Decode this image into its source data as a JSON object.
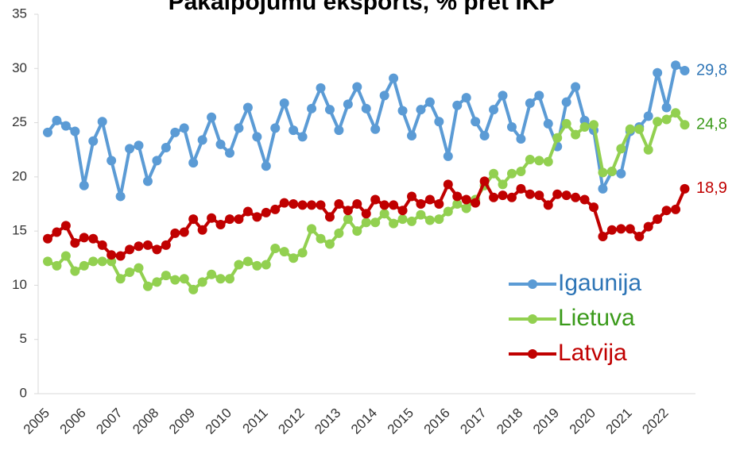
{
  "chart_data": {
    "type": "line",
    "title": "Pakalpojumu eksports, % pret IKP",
    "categories": [
      "2005",
      null,
      null,
      null,
      "2006",
      null,
      null,
      null,
      "2007",
      null,
      null,
      null,
      "2008",
      null,
      null,
      null,
      "2009",
      null,
      null,
      null,
      "2010",
      null,
      null,
      null,
      "2011",
      null,
      null,
      null,
      "2012",
      null,
      null,
      null,
      "2013",
      null,
      null,
      null,
      "2014",
      null,
      null,
      null,
      "2015",
      null,
      null,
      null,
      "2016",
      null,
      null,
      null,
      "2017",
      null,
      null,
      null,
      "2018",
      null,
      null,
      null,
      "2019",
      null,
      null,
      null,
      "2020",
      null,
      null,
      null,
      "2021",
      null,
      null,
      null,
      "2022",
      null,
      null
    ],
    "series": [
      {
        "name": "Igaunija",
        "color": "#5b9bd5",
        "label_color": "#2e75b6",
        "end_label": "29,8",
        "values": [
          24.1,
          25.2,
          24.7,
          24.2,
          19.2,
          23.3,
          25.1,
          21.5,
          18.2,
          22.6,
          22.9,
          19.6,
          21.5,
          22.7,
          24.1,
          24.5,
          21.3,
          23.4,
          25.5,
          23.0,
          22.2,
          24.5,
          26.4,
          23.7,
          21.0,
          24.5,
          26.8,
          24.3,
          23.7,
          26.3,
          28.2,
          26.2,
          24.3,
          26.7,
          28.3,
          26.3,
          24.4,
          27.5,
          29.1,
          26.1,
          23.8,
          26.2,
          26.9,
          25.1,
          21.9,
          26.6,
          27.3,
          25.1,
          23.8,
          26.2,
          27.5,
          24.6,
          23.5,
          26.8,
          27.5,
          24.9,
          22.8,
          26.9,
          28.3,
          25.2,
          24.3,
          18.9,
          20.5,
          20.3,
          24.2,
          24.6,
          25.6,
          29.6,
          26.4,
          30.3,
          29.8
        ]
      },
      {
        "name": "Lietuva",
        "color": "#92d050",
        "label_color": "#3a9a1a",
        "end_label": "24,8",
        "values": [
          12.2,
          11.8,
          12.7,
          11.3,
          11.8,
          12.2,
          12.2,
          12.2,
          10.6,
          11.2,
          11.6,
          9.9,
          10.3,
          10.9,
          10.5,
          10.6,
          9.6,
          10.3,
          11.0,
          10.6,
          10.6,
          11.9,
          12.2,
          11.8,
          11.9,
          13.4,
          13.1,
          12.5,
          13.0,
          15.2,
          14.3,
          13.8,
          14.8,
          16.1,
          15.0,
          15.8,
          15.8,
          16.6,
          15.7,
          16.1,
          15.9,
          16.5,
          16.0,
          16.1,
          16.8,
          17.5,
          17.1,
          17.9,
          19.2,
          20.3,
          19.3,
          20.3,
          20.5,
          21.6,
          21.5,
          21.4,
          23.6,
          24.9,
          23.9,
          24.6,
          24.8,
          20.4,
          20.5,
          22.6,
          24.4,
          24.4,
          22.5,
          25.1,
          25.3,
          25.9,
          24.8
        ]
      },
      {
        "name": "Latvija",
        "color": "#c00000",
        "label_color": "#c00000",
        "end_label": "18,9",
        "values": [
          14.3,
          14.9,
          15.5,
          13.9,
          14.4,
          14.3,
          13.7,
          12.8,
          12.7,
          13.3,
          13.6,
          13.7,
          13.3,
          13.7,
          14.8,
          14.9,
          16.1,
          15.1,
          16.2,
          15.6,
          16.1,
          16.1,
          16.8,
          16.3,
          16.7,
          17.0,
          17.6,
          17.5,
          17.4,
          17.4,
          17.4,
          16.3,
          17.5,
          16.9,
          17.5,
          16.6,
          17.9,
          17.4,
          17.4,
          16.9,
          18.2,
          17.5,
          17.9,
          17.5,
          19.3,
          18.2,
          17.9,
          17.6,
          19.6,
          18.1,
          18.3,
          18.1,
          18.9,
          18.4,
          18.3,
          17.4,
          18.4,
          18.3,
          18.1,
          17.9,
          17.2,
          14.5,
          15.1,
          15.2,
          15.2,
          14.5,
          15.4,
          16.1,
          16.9,
          17.0,
          18.9
        ]
      }
    ],
    "ylim": [
      0,
      35
    ],
    "yticks": [
      0,
      5,
      10,
      15,
      20,
      25,
      30,
      35
    ],
    "grid": false,
    "legend": "lower right"
  }
}
